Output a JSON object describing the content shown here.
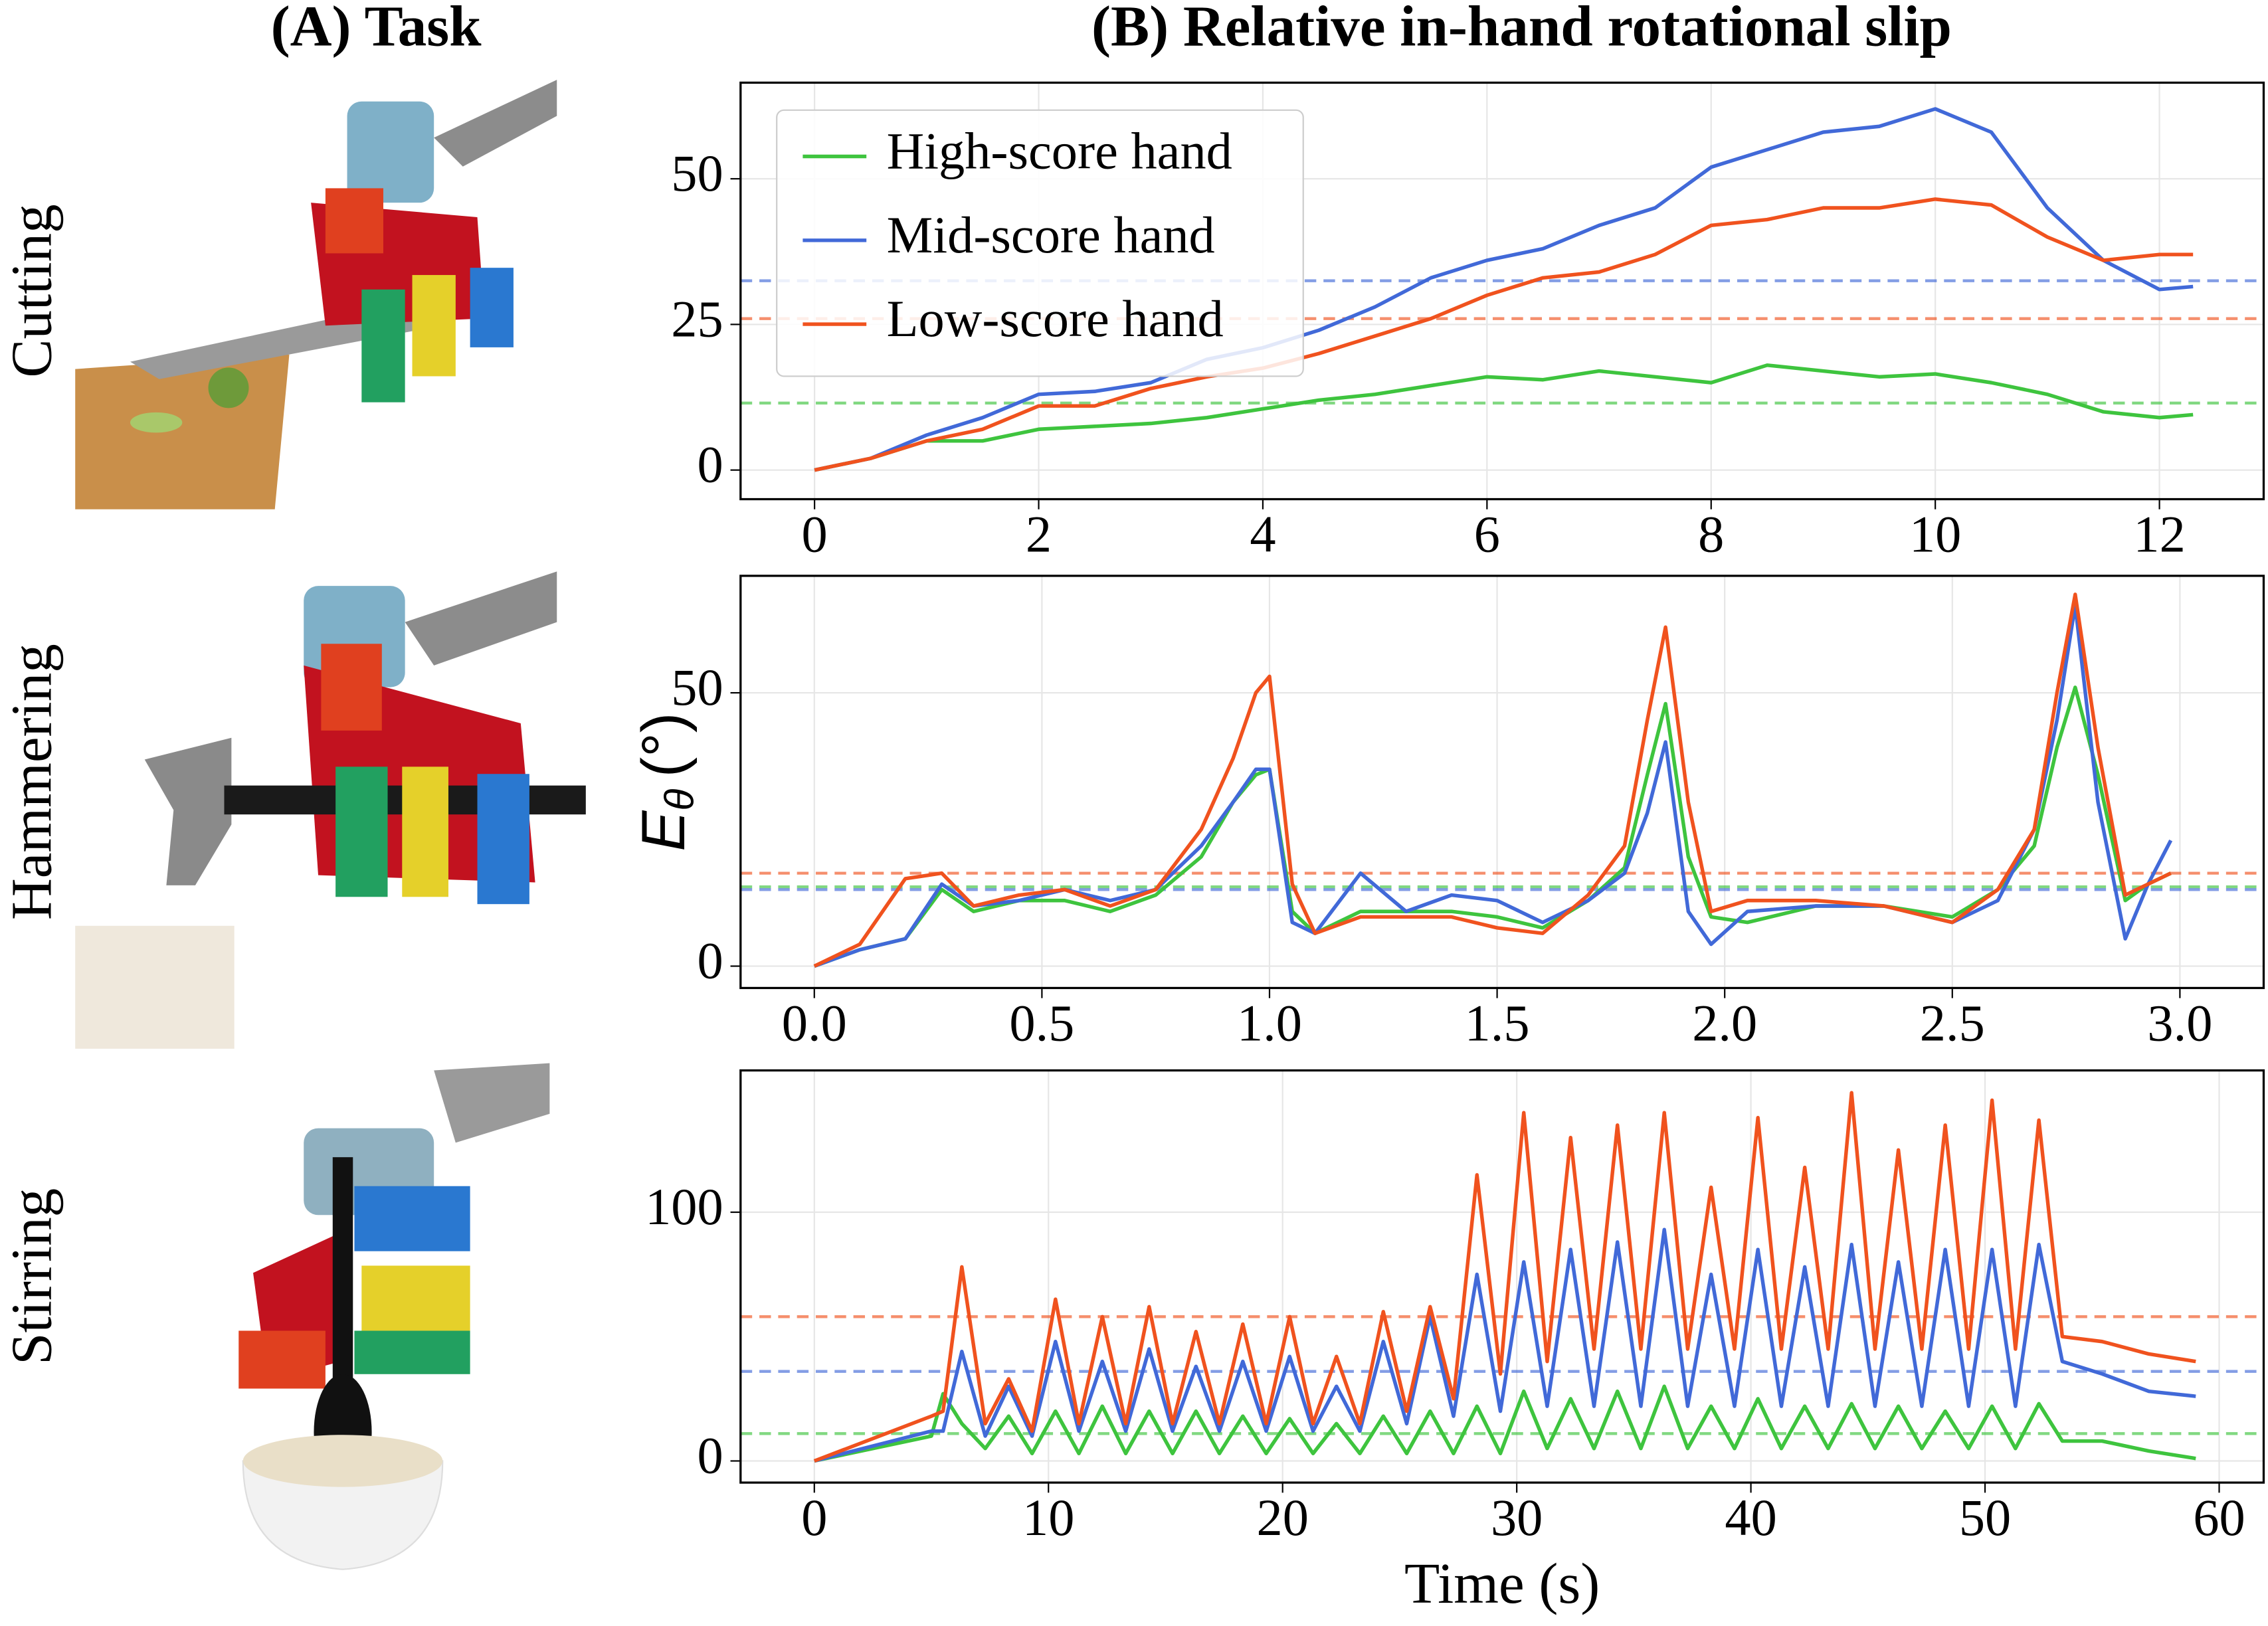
{
  "panel_a_title": "(A) Task",
  "panel_b_title": "(B) Relative in-hand rotational slip",
  "chart_data": [
    {
      "type": "line",
      "task": "Cutting",
      "legend": "upper left",
      "grid": true,
      "xlim": [
        -0.66,
        12.93
      ],
      "ylim": [
        -5,
        66.5
      ],
      "xticks": [
        0,
        2,
        4,
        6,
        8,
        10,
        12
      ],
      "yticks": [
        0,
        25,
        50
      ],
      "x": [
        0,
        0.5,
        1,
        1.5,
        2,
        2.5,
        3,
        3.5,
        4,
        4.5,
        5,
        5.5,
        6,
        6.5,
        7,
        7.5,
        8,
        8.5,
        9,
        9.5,
        10,
        10.5,
        11,
        11.5,
        12,
        12.3
      ],
      "series": [
        {
          "name": "High-score hand",
          "color": "#3ec43e",
          "mean": 11.5,
          "values": [
            0,
            2,
            5,
            5,
            7,
            7.5,
            8,
            9,
            10.5,
            12,
            13,
            14.5,
            16,
            15.5,
            17,
            16,
            15,
            18,
            17,
            16,
            16.5,
            15,
            13,
            10,
            9,
            9.5
          ]
        },
        {
          "name": "Mid-score hand",
          "color": "#4169d8",
          "mean": 32.5,
          "values": [
            0,
            2,
            6,
            9,
            13,
            13.5,
            15,
            19,
            21,
            24,
            28,
            33,
            36,
            38,
            42,
            45,
            52,
            55,
            58,
            59,
            62,
            58,
            45,
            36,
            31,
            31.5
          ]
        },
        {
          "name": "Low-score hand",
          "color": "#f0521e",
          "mean": 26,
          "values": [
            0,
            2,
            5,
            7,
            11,
            11,
            14,
            16,
            17.5,
            20,
            23,
            26,
            30,
            33,
            34,
            37,
            42,
            43,
            45,
            45,
            46.5,
            45.5,
            40,
            36,
            37,
            37
          ]
        }
      ]
    },
    {
      "type": "line",
      "task": "Hammering",
      "legend": false,
      "grid": true,
      "ylabel": "E",
      "ylabel_subscript": "θ",
      "ylabel_unit": "(°)",
      "xlim": [
        -0.162,
        3.184
      ],
      "ylim": [
        -4,
        71.4
      ],
      "xticks": [
        {
          "value": 0,
          "label": "0.0"
        },
        0.5,
        {
          "value": 1,
          "label": "1.0"
        },
        1.5,
        {
          "value": 2,
          "label": "2.0"
        },
        2.5,
        {
          "value": 3,
          "label": "3.0"
        }
      ],
      "yticks": [
        0,
        50
      ],
      "x": [
        0,
        0.1,
        0.2,
        0.28,
        0.35,
        0.45,
        0.55,
        0.65,
        0.75,
        0.85,
        0.92,
        0.97,
        1.0,
        1.05,
        1.1,
        1.2,
        1.3,
        1.4,
        1.5,
        1.6,
        1.7,
        1.78,
        1.83,
        1.87,
        1.92,
        1.97,
        2.05,
        2.2,
        2.35,
        2.5,
        2.6,
        2.68,
        2.73,
        2.77,
        2.82,
        2.88,
        2.93,
        2.98
      ],
      "series": [
        {
          "name": "High-score hand",
          "color": "#3ec43e",
          "mean": 14.5,
          "values": [
            0,
            3,
            5,
            14,
            10,
            12,
            12,
            10,
            13,
            20,
            30,
            35,
            36,
            10,
            6,
            10,
            10,
            10,
            9,
            7,
            12,
            18,
            35,
            48,
            20,
            9,
            8,
            11,
            11,
            9,
            14,
            22,
            40,
            51,
            35,
            12,
            15,
            17
          ]
        },
        {
          "name": "Mid-score hand",
          "color": "#4169d8",
          "mean": 14,
          "values": [
            0,
            3,
            5,
            15,
            11,
            12,
            14,
            12,
            14,
            22,
            30,
            36,
            36,
            8,
            6,
            17,
            10,
            13,
            12,
            8,
            12,
            17,
            28,
            41,
            10,
            4,
            10,
            11,
            11,
            8,
            12,
            25,
            45,
            66,
            30,
            5,
            15,
            23
          ]
        },
        {
          "name": "Low-score hand",
          "color": "#f0521e",
          "mean": 17,
          "values": [
            0,
            4,
            16,
            17,
            11,
            13,
            14,
            11,
            14,
            25,
            38,
            50,
            53,
            15,
            6,
            9,
            9,
            9,
            7,
            6,
            13,
            22,
            45,
            62,
            30,
            10,
            12,
            12,
            11,
            8,
            14,
            25,
            50,
            68,
            40,
            13,
            15,
            17
          ]
        }
      ]
    },
    {
      "type": "line",
      "task": "Stirring",
      "legend": false,
      "grid": true,
      "xlabel": "Time (s)",
      "xlim": [
        -3.15,
        61.9
      ],
      "ylim": [
        -8.7,
        157
      ],
      "xticks": [
        0,
        10,
        20,
        30,
        40,
        50,
        60
      ],
      "yticks": [
        0,
        100
      ],
      "x": [
        0,
        5,
        5.5,
        6.3,
        7.3,
        8.3,
        9.3,
        10.3,
        11.3,
        12.3,
        13.3,
        14.3,
        15.3,
        16.3,
        17.3,
        18.3,
        19.3,
        20.3,
        21.3,
        22.3,
        23.3,
        24.3,
        25.3,
        26.3,
        27.3,
        28.3,
        29.3,
        30.3,
        31.3,
        32.3,
        33.3,
        34.3,
        35.3,
        36.3,
        37.3,
        38.3,
        39.3,
        40.3,
        41.3,
        42.3,
        43.3,
        44.3,
        45.3,
        46.3,
        47.3,
        48.3,
        49.3,
        50.3,
        51.3,
        52.3,
        53.3,
        55,
        57,
        59
      ],
      "series": [
        {
          "name": "High-score hand",
          "color": "#3ec43e",
          "mean": 11,
          "values": [
            0,
            10,
            27,
            15,
            5,
            18,
            3,
            20,
            3,
            22,
            3,
            20,
            3,
            20,
            3,
            18,
            3,
            17,
            3,
            15,
            3,
            18,
            3,
            20,
            3,
            22,
            3,
            28,
            5,
            25,
            5,
            28,
            5,
            30,
            5,
            22,
            5,
            25,
            5,
            22,
            5,
            23,
            5,
            22,
            5,
            20,
            5,
            22,
            5,
            23,
            8,
            8,
            4,
            1
          ]
        },
        {
          "name": "Mid-score hand",
          "color": "#4169d8",
          "mean": 36,
          "values": [
            0,
            12,
            12,
            44,
            10,
            30,
            10,
            48,
            12,
            40,
            12,
            45,
            12,
            38,
            12,
            40,
            12,
            42,
            12,
            30,
            12,
            48,
            15,
            58,
            18,
            75,
            20,
            80,
            22,
            85,
            22,
            88,
            22,
            93,
            22,
            75,
            22,
            85,
            22,
            78,
            22,
            87,
            22,
            80,
            22,
            85,
            22,
            85,
            22,
            87,
            40,
            35,
            28,
            26
          ]
        },
        {
          "name": "Low-score hand",
          "color": "#f0521e",
          "mean": 58,
          "values": [
            0,
            18,
            20,
            78,
            15,
            33,
            12,
            65,
            15,
            58,
            15,
            62,
            15,
            52,
            15,
            55,
            15,
            58,
            15,
            42,
            15,
            60,
            20,
            62,
            25,
            115,
            35,
            140,
            40,
            130,
            45,
            135,
            45,
            140,
            45,
            110,
            45,
            138,
            45,
            118,
            45,
            148,
            45,
            125,
            45,
            135,
            45,
            145,
            45,
            137,
            50,
            48,
            43,
            40
          ]
        }
      ]
    }
  ]
}
